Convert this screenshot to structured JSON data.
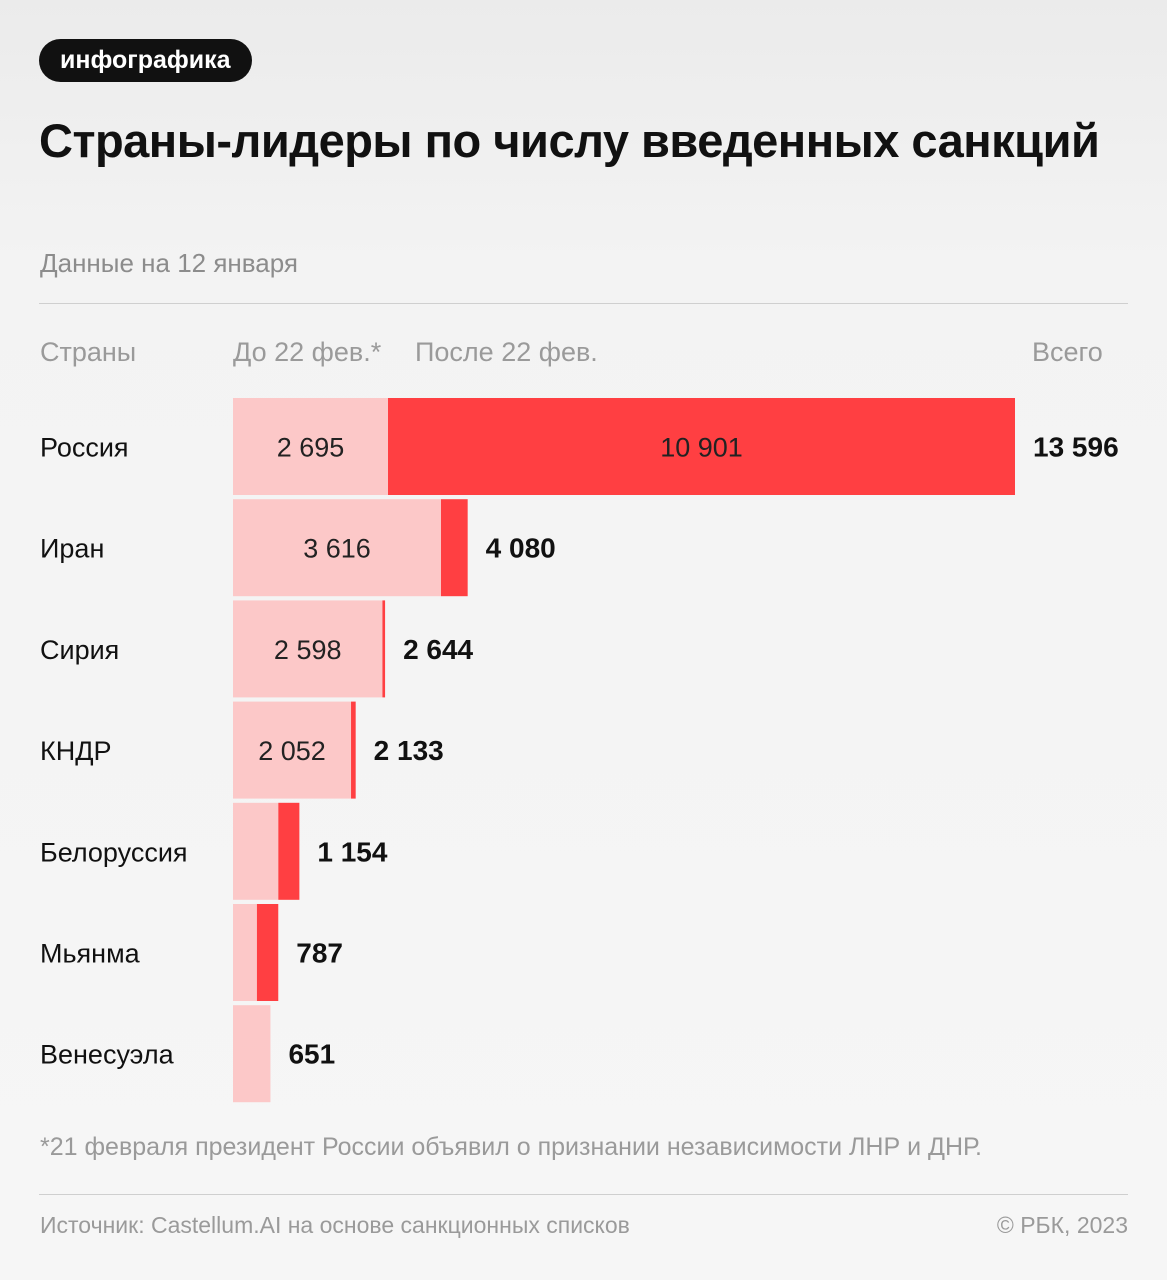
{
  "badge": "инфографика",
  "title": "Страны-лидеры по числу введенных санкций",
  "subtitle": "Данные на 12 января",
  "columns": {
    "countries": "Страны",
    "before": "До 22 фев.*",
    "after": "После 22 фев.",
    "total": "Всего"
  },
  "chart_data": {
    "type": "bar",
    "orientation": "horizontal",
    "stacked": true,
    "categories": [
      "Россия",
      "Иран",
      "Сирия",
      "КНДР",
      "Белоруссия",
      "Мьянма",
      "Венесуэла"
    ],
    "series": [
      {
        "name": "До 22 фев.*",
        "color": "#fcc8c8",
        "values": [
          2695,
          3616,
          2598,
          2052,
          788,
          416,
          651
        ],
        "labels": [
          "2 695",
          "3 616",
          "2 598",
          "2 052",
          "",
          "",
          ""
        ]
      },
      {
        "name": "После 22 фев.",
        "color": "#ff3f42",
        "values": [
          10901,
          464,
          46,
          81,
          366,
          371,
          0
        ],
        "labels": [
          "10 901",
          "",
          "",
          "",
          "",
          "",
          ""
        ]
      }
    ],
    "totals": [
      13596,
      4080,
      2644,
      2133,
      1154,
      787,
      651
    ],
    "total_labels": [
      "13 596",
      "4 080",
      "2 644",
      "2 133",
      "1 154",
      "787",
      "651"
    ],
    "xlim": [
      0,
      13596
    ]
  },
  "footnote": "*21 февраля президент России объявил о признании независимости ЛНР и ДНР.",
  "source": "Источник: Castellum.AI на основе санкционных списков",
  "copyright": "© РБК, 2023",
  "colors": {
    "before": "#fcc8c8",
    "after": "#ff3f42",
    "text": "#111111",
    "muted": "#9a9a9a"
  }
}
